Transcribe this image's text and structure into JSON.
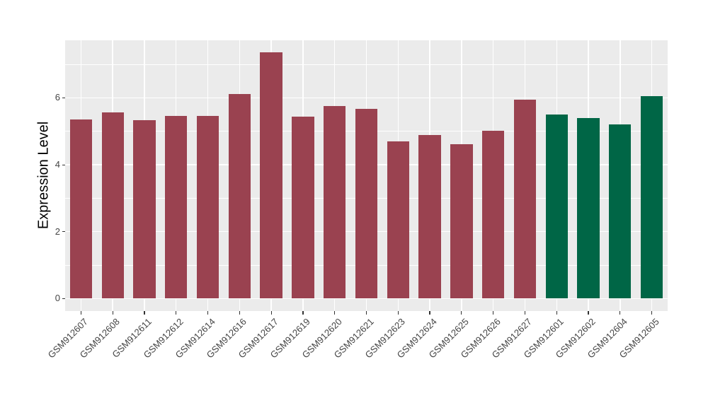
{
  "chart_data": {
    "type": "bar",
    "ylabel": "Expression Level",
    "xlabel": "",
    "categories": [
      "GSM912607",
      "GSM912608",
      "GSM912611",
      "GSM912612",
      "GSM912614",
      "GSM912616",
      "GSM912617",
      "GSM912619",
      "GSM912620",
      "GSM912621",
      "GSM912623",
      "GSM912624",
      "GSM912625",
      "GSM912626",
      "GSM912627",
      "GSM912601",
      "GSM912602",
      "GSM912604",
      "GSM912605"
    ],
    "values": [
      5.36,
      5.56,
      5.33,
      5.47,
      5.47,
      6.12,
      7.36,
      5.44,
      5.75,
      5.67,
      4.69,
      4.88,
      4.62,
      5.02,
      5.94,
      5.5,
      5.39,
      5.2,
      6.06
    ],
    "bar_colors": [
      "#9A4250",
      "#9A4250",
      "#9A4250",
      "#9A4250",
      "#9A4250",
      "#9A4250",
      "#9A4250",
      "#9A4250",
      "#9A4250",
      "#9A4250",
      "#9A4250",
      "#9A4250",
      "#9A4250",
      "#9A4250",
      "#9A4250",
      "#006646",
      "#006646",
      "#006646",
      "#006646"
    ],
    "group_colors": {
      "maroon_group": "#9A4250",
      "green_group": "#006646"
    },
    "yticks": [
      0,
      2,
      4,
      6
    ],
    "yticks_minor": [
      1,
      3,
      5,
      7
    ],
    "ylim": [
      -0.37,
      7.72
    ],
    "bar_width_ratio": 0.7,
    "x_label_rotation_deg": 45,
    "legend": "none",
    "grid": "white major and minor horizontal lines, white vertical lines at category centers",
    "panel_bg": "#EBEBEB",
    "grid_color": "#FFFFFF",
    "tick_mark_color": "#333333",
    "axis_text_color": "#454545"
  }
}
